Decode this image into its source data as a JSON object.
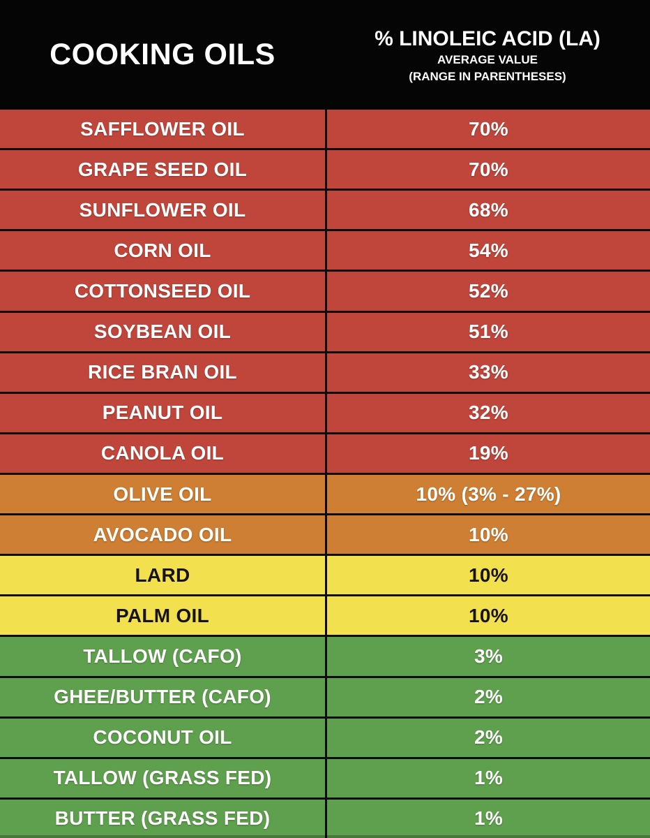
{
  "header": {
    "left_title": "COOKING OILS",
    "right_title": "% LINOLEIC ACID (LA)",
    "right_sub1": "AVERAGE VALUE",
    "right_sub2": "(RANGE IN PARENTHESES)"
  },
  "colors": {
    "header_bg": "#050505",
    "separator": "#0e0c0a",
    "red": "#c0463c",
    "orange": "#ce7f33",
    "yellow": "#f3e04e",
    "green": "#5fa04e",
    "text_light": "#ffffff",
    "text_dark": "#161310"
  },
  "rows": [
    {
      "name": "SAFFLOWER OIL",
      "value": "70%",
      "tier": "red",
      "text": "light"
    },
    {
      "name": "GRAPE SEED OIL",
      "value": "70%",
      "tier": "red",
      "text": "light"
    },
    {
      "name": "SUNFLOWER OIL",
      "value": "68%",
      "tier": "red",
      "text": "light"
    },
    {
      "name": "CORN OIL",
      "value": "54%",
      "tier": "red",
      "text": "light"
    },
    {
      "name": "COTTONSEED OIL",
      "value": "52%",
      "tier": "red",
      "text": "light"
    },
    {
      "name": "SOYBEAN OIL",
      "value": "51%",
      "tier": "red",
      "text": "light"
    },
    {
      "name": "RICE BRAN OIL",
      "value": "33%",
      "tier": "red",
      "text": "light"
    },
    {
      "name": "PEANUT OIL",
      "value": "32%",
      "tier": "red",
      "text": "light"
    },
    {
      "name": "CANOLA OIL",
      "value": "19%",
      "tier": "red",
      "text": "light"
    },
    {
      "name": "OLIVE OIL",
      "value": "10% (3% - 27%)",
      "tier": "orange",
      "text": "light"
    },
    {
      "name": "AVOCADO OIL",
      "value": "10%",
      "tier": "orange",
      "text": "light"
    },
    {
      "name": "LARD",
      "value": "10%",
      "tier": "yellow",
      "text": "dark"
    },
    {
      "name": "PALM OIL",
      "value": "10%",
      "tier": "yellow",
      "text": "dark"
    },
    {
      "name": "TALLOW (CAFO)",
      "value": "3%",
      "tier": "green",
      "text": "light"
    },
    {
      "name": "GHEE/BUTTER (CAFO)",
      "value": "2%",
      "tier": "green",
      "text": "light"
    },
    {
      "name": "COCONUT OIL",
      "value": "2%",
      "tier": "green",
      "text": "light"
    },
    {
      "name": "TALLOW (GRASS FED)",
      "value": "1%",
      "tier": "green",
      "text": "light"
    },
    {
      "name": "BUTTER (GRASS FED)",
      "value": "1%",
      "tier": "green",
      "text": "light"
    }
  ],
  "chart_data": {
    "type": "table",
    "title": "% LINOLEIC ACID (LA)",
    "subtitle": "AVERAGE VALUE (RANGE IN PARENTHESES)",
    "columns": [
      "COOKING OILS",
      "% LINOLEIC ACID (LA) AVERAGE VALUE"
    ],
    "categories": [
      "SAFFLOWER OIL",
      "GRAPE SEED OIL",
      "SUNFLOWER OIL",
      "CORN OIL",
      "COTTONSEED OIL",
      "SOYBEAN OIL",
      "RICE BRAN OIL",
      "PEANUT OIL",
      "CANOLA OIL",
      "OLIVE OIL",
      "AVOCADO OIL",
      "LARD",
      "PALM OIL",
      "TALLOW (CAFO)",
      "GHEE/BUTTER (CAFO)",
      "COCONUT OIL",
      "TALLOW (GRASS FED)",
      "BUTTER (GRASS FED)"
    ],
    "values": [
      70,
      70,
      68,
      54,
      52,
      51,
      33,
      32,
      19,
      10,
      10,
      10,
      10,
      3,
      2,
      2,
      1,
      1
    ],
    "ranges": {
      "OLIVE OIL": "3% - 27%"
    },
    "units": "%",
    "color_coding": {
      "red": [
        "SAFFLOWER OIL",
        "GRAPE SEED OIL",
        "SUNFLOWER OIL",
        "CORN OIL",
        "COTTONSEED OIL",
        "SOYBEAN OIL",
        "RICE BRAN OIL",
        "PEANUT OIL",
        "CANOLA OIL"
      ],
      "orange": [
        "OLIVE OIL",
        "AVOCADO OIL"
      ],
      "yellow": [
        "LARD",
        "PALM OIL"
      ],
      "green": [
        "TALLOW (CAFO)",
        "GHEE/BUTTER (CAFO)",
        "COCONUT OIL",
        "TALLOW (GRASS FED)",
        "BUTTER (GRASS FED)"
      ]
    }
  }
}
